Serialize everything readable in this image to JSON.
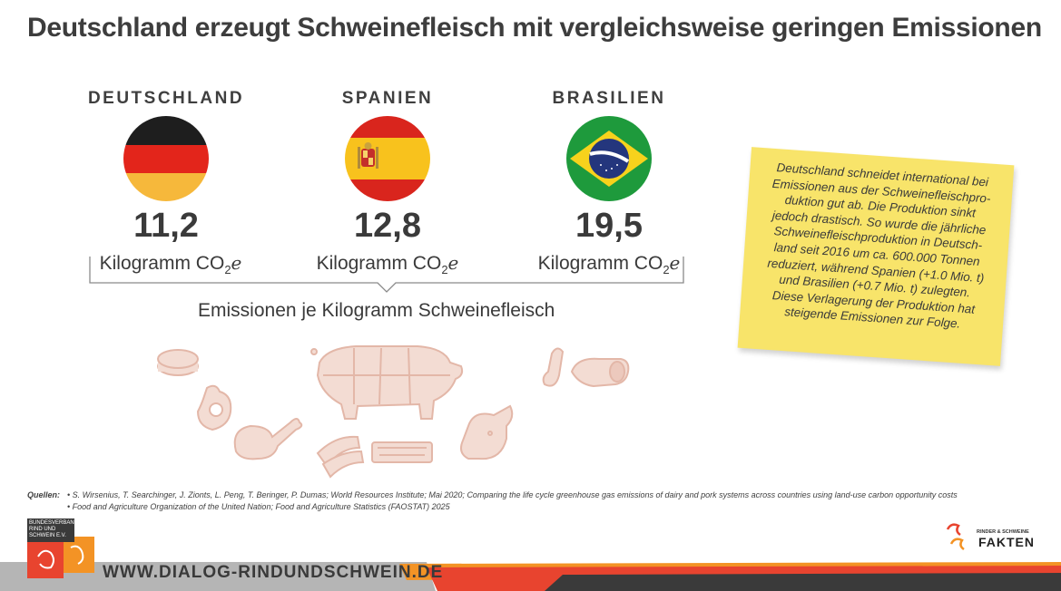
{
  "title": "Deutschland erzeugt Schweinefleisch mit vergleichsweise geringen Emissionen",
  "countries": [
    {
      "name": "DEUTSCHLAND",
      "value": "11,2",
      "unit": "Kilogramm CO",
      "unit_sub": "2",
      "unit_suffix": "e"
    },
    {
      "name": "SPANIEN",
      "value": "12,8",
      "unit": "Kilogramm CO",
      "unit_sub": "2",
      "unit_suffix": "e"
    },
    {
      "name": "BRASILIEN",
      "value": "19,5",
      "unit": "Kilogramm CO",
      "unit_sub": "2",
      "unit_suffix": "e"
    }
  ],
  "caption": "Emissionen je Kilogramm Schweinefleisch",
  "note": {
    "lines": [
      "Deutschland schneidet international bei",
      "Emissionen aus der Schweinefleischpro-",
      "duktion gut ab. Die Produktion sinkt",
      "jedoch drastisch. So wurde die jährliche",
      "Schweinefleischproduktion in Deutsch-",
      "land seit 2016 um ca. 600.000 Tonnen",
      "reduziert, während Spanien (+1.0 Mio. t)",
      "und Brasilien (+0.7 Mio. t) zulegten.",
      "Diese Verlagerung der Produktion hat",
      "steigende Emissionen zur Folge."
    ]
  },
  "sources": {
    "label": "Quellen:",
    "items": [
      "• S. Wirsenius, T. Searchinger, J. Zionts, L. Peng, T. Beringer, P. Dumas; World Resources Institute; Mai 2020; Comparing the life cycle greenhouse gas emissions of dairy and pork systems across countries using land-use carbon opportunity costs",
      "• Food and Agriculture Organization of the United Nation; Food and Agriculture Statistics (FAOSTAT) 2025"
    ]
  },
  "footer": {
    "url": "WWW.DIALOG-RINDUNDSCHWEIN.DE",
    "logo_left_text": [
      "BUNDESVERBAND",
      "RIND UND SCHWEIN E.V."
    ],
    "logo_right_small": "RINDER & SCHWEINE",
    "logo_right_big": "FAKTEN"
  },
  "colors": {
    "text": "#3a3a3a",
    "note_yellow": "#f8e46a",
    "illustration": "#ecc9bd",
    "footer_red": "#e8442f",
    "footer_orange": "#f39325",
    "footer_grey": "#b5b5b5",
    "footer_dark": "#3a3a3a"
  }
}
